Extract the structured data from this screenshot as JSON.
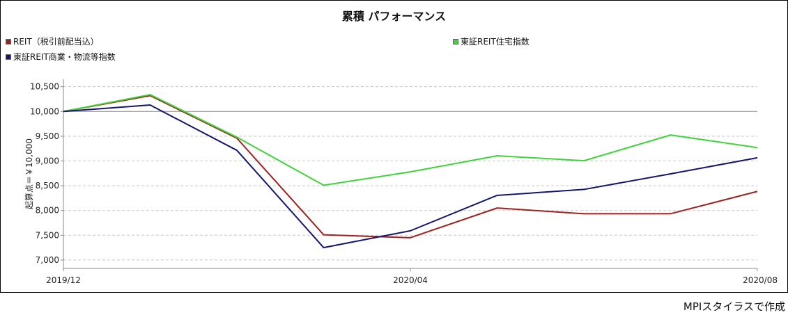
{
  "chart_data": {
    "type": "line",
    "title": "累積 パフォーマンス",
    "ylabel": "起算点＝￥10,000",
    "xlabel": "",
    "ylim": [
      6830,
      10650
    ],
    "yticks": [
      7000,
      7500,
      8000,
      8500,
      9000,
      9500,
      10000,
      10500
    ],
    "ytick_labels": [
      "7,000",
      "7,500",
      "8,000",
      "8,500",
      "9,000",
      "9,500",
      "10,000",
      "10,500"
    ],
    "x": [
      "2019/12",
      "2020/01",
      "2020/02",
      "2020/03",
      "2020/04",
      "2020/05",
      "2020/06",
      "2020/07",
      "2020/08"
    ],
    "xtick_labels": [
      "2019/12",
      "2020/04",
      "2020/08"
    ],
    "grid": "horizontal dashed",
    "reference_line": 10000,
    "series": [
      {
        "name": "REIT（税引前配当込）",
        "color": "#a0201c",
        "values": [
          10000,
          10320,
          9460,
          7510,
          7450,
          8050,
          7935,
          7935,
          8385
        ]
      },
      {
        "name": "東証REIT住宅指数",
        "color": "#3fd43a",
        "values": [
          10000,
          10340,
          9480,
          8510,
          8780,
          9105,
          9005,
          9525,
          9270
        ]
      },
      {
        "name": "東証REIT商業・物流等指数",
        "color": "#14166e",
        "values": [
          10000,
          10130,
          9215,
          7250,
          7590,
          8305,
          8425,
          8740,
          9065
        ]
      }
    ]
  },
  "footer": "MPIスタイラスで作成"
}
